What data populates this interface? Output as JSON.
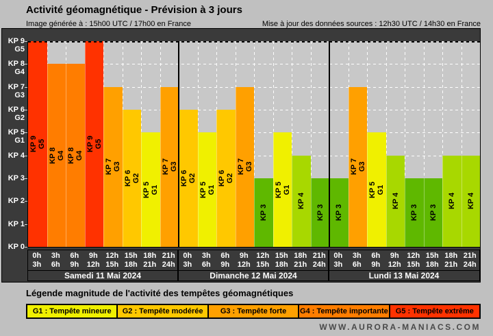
{
  "header": {
    "title": "Activité géomagnétique - Prévision à 3 jours",
    "generated": "Image générée à : 15h00 UTC / 17h00 en France",
    "updated": "Mise à jour des données sources : 12h30 UTC / 14h30 en France"
  },
  "chart_data": {
    "type": "bar",
    "title": "Activité géomagnétique - Prévision à 3 jours",
    "xlabel": "",
    "ylabel": "",
    "ylim": [
      0,
      9
    ],
    "grid": true,
    "legend_position": "bottom",
    "y_axis": [
      {
        "kp": "KP 9",
        "g": "G5"
      },
      {
        "kp": "KP 8",
        "g": "G4"
      },
      {
        "kp": "KP 7",
        "g": "G3"
      },
      {
        "kp": "KP 6",
        "g": "G2"
      },
      {
        "kp": "KP 5",
        "g": "G1"
      },
      {
        "kp": "KP 4"
      },
      {
        "kp": "KP 3"
      },
      {
        "kp": "KP 2"
      },
      {
        "kp": "KP 1"
      },
      {
        "kp": "KP 0"
      }
    ],
    "time_slots": [
      {
        "start": "0h",
        "end": "3h"
      },
      {
        "start": "3h",
        "end": "6h"
      },
      {
        "start": "6h",
        "end": "9h"
      },
      {
        "start": "9h",
        "end": "12h"
      },
      {
        "start": "12h",
        "end": "15h"
      },
      {
        "start": "15h",
        "end": "18h"
      },
      {
        "start": "18h",
        "end": "21h"
      },
      {
        "start": "21h",
        "end": "24h"
      }
    ],
    "days": [
      {
        "label": "Samedi 11 Mai 2024",
        "values": [
          9,
          8,
          8,
          9,
          7,
          6,
          5,
          7
        ],
        "bars": [
          {
            "kp": 9,
            "kp_label": "KP 9",
            "g_label": "G5"
          },
          {
            "kp": 8,
            "kp_label": "KP 8",
            "g_label": "G4"
          },
          {
            "kp": 8,
            "kp_label": "KP 8",
            "g_label": "G4"
          },
          {
            "kp": 9,
            "kp_label": "KP 9",
            "g_label": "G5"
          },
          {
            "kp": 7,
            "kp_label": "KP 7",
            "g_label": "G3"
          },
          {
            "kp": 6,
            "kp_label": "KP 6",
            "g_label": "G2"
          },
          {
            "kp": 5,
            "kp_label": "KP 5",
            "g_label": "G1"
          },
          {
            "kp": 7,
            "kp_label": "KP 7",
            "g_label": "G3"
          }
        ]
      },
      {
        "label": "Dimanche 12 Mai 2024",
        "values": [
          6,
          5,
          6,
          7,
          3,
          5,
          4,
          3
        ],
        "bars": [
          {
            "kp": 6,
            "kp_label": "KP 6",
            "g_label": "G2"
          },
          {
            "kp": 5,
            "kp_label": "KP 5",
            "g_label": "G1"
          },
          {
            "kp": 6,
            "kp_label": "KP 6",
            "g_label": "G2"
          },
          {
            "kp": 7,
            "kp_label": "KP 7",
            "g_label": "G3"
          },
          {
            "kp": 3,
            "kp_label": "KP 3"
          },
          {
            "kp": 5,
            "kp_label": "KP 5",
            "g_label": "G1"
          },
          {
            "kp": 4,
            "kp_label": "KP 4"
          },
          {
            "kp": 3,
            "kp_label": "KP 3"
          }
        ]
      },
      {
        "label": "Lundi 13 Mai 2024",
        "values": [
          3,
          7,
          5,
          4,
          3,
          3,
          4,
          4
        ],
        "bars": [
          {
            "kp": 3,
            "kp_label": "KP 3"
          },
          {
            "kp": 7,
            "kp_label": "KP 7",
            "g_label": "G3"
          },
          {
            "kp": 5,
            "kp_label": "KP 5",
            "g_label": "G1"
          },
          {
            "kp": 4,
            "kp_label": "KP 4"
          },
          {
            "kp": 3,
            "kp_label": "KP 3"
          },
          {
            "kp": 3,
            "kp_label": "KP 3"
          },
          {
            "kp": 4,
            "kp_label": "KP 4"
          },
          {
            "kp": 4,
            "kp_label": "KP 4"
          }
        ]
      }
    ],
    "kp_colors": {
      "3": "#5fb800",
      "4": "#a8d800",
      "5": "#f0f000",
      "6": "#ffc800",
      "7": "#ffa000",
      "8": "#ff7d00",
      "9": "#ff3200"
    }
  },
  "legend": {
    "title": "Légende magnitude de l'activité des tempêtes géomagnétiques",
    "items": [
      {
        "label": "G1 : Tempête mineure",
        "color": "#f0f000"
      },
      {
        "label": "G2 : Tempête modérée",
        "color": "#ffc800"
      },
      {
        "label": "G3 : Tempête forte",
        "color": "#ffa000"
      },
      {
        "label": "G4 : Tempête importante",
        "color": "#ff7d00"
      },
      {
        "label": "G5 : Tempête extrême",
        "color": "#ff3200"
      }
    ]
  },
  "footer": {
    "website": "WWW.AURORA-MANIACS.COM"
  }
}
